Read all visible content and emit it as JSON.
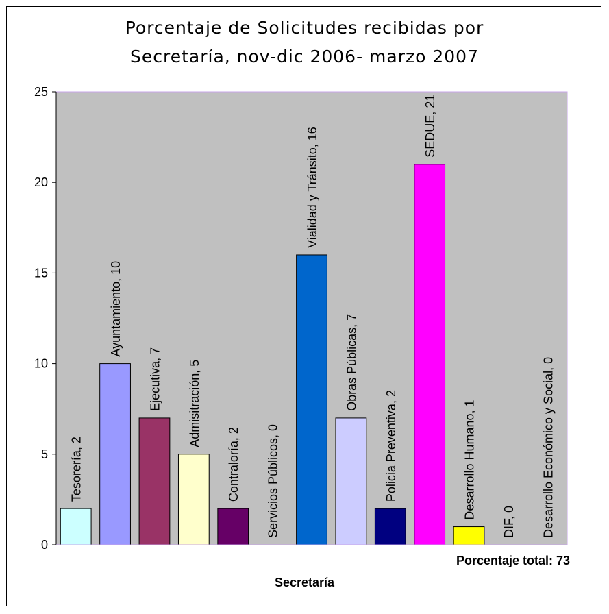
{
  "chart_data": {
    "type": "bar",
    "title_line1": "Porcentaje de Solicitudes recibidas por",
    "title_line2": "Secretaría, nov-dic 2006- marzo 2007",
    "xlabel": "Secretaría",
    "ylabel": "",
    "ylim": [
      0,
      25
    ],
    "yticks": [
      0,
      5,
      10,
      15,
      20,
      25
    ],
    "grid": false,
    "plot_background": "#C0C0C0",
    "categories": [
      "Tesorería",
      "Ayuntamiento",
      "Ejecutiva",
      "Admisitración",
      "Contraloría",
      "Servicios Públicos",
      "Vialidad y Tránsito",
      "Obras Públicas",
      "Policia Preventiva",
      "SEDUE",
      "Desarrollo Humano",
      "DIF",
      "Desarrollo Económico y Social"
    ],
    "values": [
      2,
      10,
      7,
      5,
      2,
      0,
      16,
      7,
      2,
      21,
      1,
      0,
      0
    ],
    "data_labels": [
      "Tesorería, 2",
      "Ayuntamiento, 10",
      "Ejecutiva, 7",
      "Admisitración, 5",
      "Contraloría, 2",
      "Servicios Públicos, 0",
      "Vialidad y Tránsito, 16",
      "Obras Públicas, 7",
      "Policia Preventiva, 2",
      "SEDUE, 21",
      "Desarrollo Humano, 1",
      "DIF, 0",
      "Desarrollo Económico y Social, 0"
    ],
    "colors": [
      "#CCFFFF",
      "#9999FF",
      "#993366",
      "#FFFFCC",
      "#660066",
      "#FF8080",
      "#0066CC",
      "#CCCCFF",
      "#000080",
      "#FF00FF",
      "#FFFF00",
      "#00FFFF",
      "#800080"
    ],
    "annotation": "Porcentaje total: 73"
  }
}
